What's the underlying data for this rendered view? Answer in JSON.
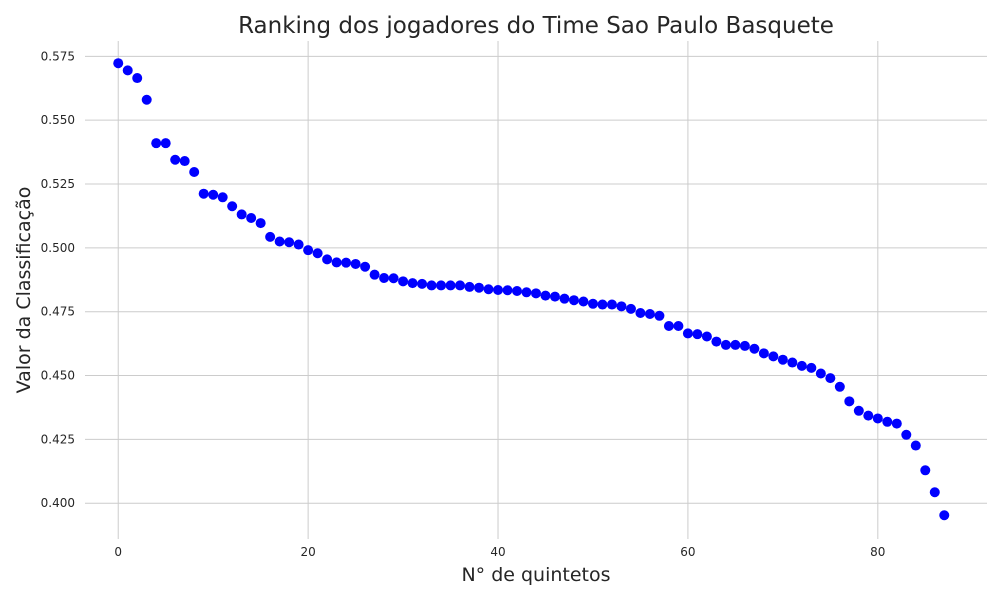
{
  "chart_data": {
    "type": "scatter",
    "title": "Ranking dos jogadores do Time Sao Paulo Basquete",
    "xlabel": "N° de quintetos",
    "ylabel": "Valor da Classificação",
    "xlim": [
      -3.5,
      91.5
    ],
    "ylim": [
      0.386,
      0.581
    ],
    "xticks": [
      0,
      20,
      40,
      60,
      80
    ],
    "xtick_labels": [
      "0",
      "20",
      "40",
      "60",
      "80"
    ],
    "yticks": [
      0.4,
      0.425,
      0.45,
      0.475,
      0.5,
      0.525,
      0.55,
      0.575
    ],
    "ytick_labels": [
      "0.400",
      "0.425",
      "0.450",
      "0.475",
      "0.500",
      "0.525",
      "0.550",
      "0.575"
    ],
    "grid": true,
    "legend": "none",
    "colors": {
      "points": "#0000ff",
      "grid": "#cccccc",
      "text": "#262626"
    },
    "series": [
      {
        "x": [
          0,
          1,
          2,
          3,
          4,
          5,
          6,
          7,
          8,
          9,
          10,
          11,
          12,
          13,
          14,
          15,
          16,
          17,
          18,
          19,
          20,
          21,
          22,
          23,
          24,
          25,
          26,
          27,
          28,
          29,
          30,
          31,
          32,
          33,
          34,
          35,
          36,
          37,
          38,
          39,
          40,
          41,
          42,
          43,
          44,
          45,
          46,
          47,
          48,
          49,
          50,
          51,
          52,
          53,
          54,
          55,
          56,
          57,
          58,
          59,
          60,
          61,
          62,
          63,
          64,
          65,
          66,
          67,
          68,
          69,
          70,
          71,
          72,
          73,
          74,
          75,
          76,
          77,
          78,
          79,
          80,
          81,
          82,
          83,
          84,
          85,
          86,
          87
        ],
        "y": [
          0.5723,
          0.5695,
          0.5665,
          0.558,
          0.541,
          0.541,
          0.5345,
          0.534,
          0.5297,
          0.5212,
          0.5208,
          0.5198,
          0.5163,
          0.5131,
          0.5117,
          0.5097,
          0.5043,
          0.5025,
          0.5022,
          0.5013,
          0.4991,
          0.4979,
          0.4955,
          0.4943,
          0.4942,
          0.4937,
          0.4926,
          0.4895,
          0.4882,
          0.4881,
          0.4869,
          0.4862,
          0.4859,
          0.4853,
          0.4853,
          0.4853,
          0.4853,
          0.4847,
          0.4844,
          0.4838,
          0.4835,
          0.4834,
          0.4831,
          0.4826,
          0.4822,
          0.4813,
          0.4809,
          0.4801,
          0.4795,
          0.479,
          0.4781,
          0.4778,
          0.4778,
          0.4771,
          0.4761,
          0.4745,
          0.4741,
          0.4734,
          0.4694,
          0.4694,
          0.4665,
          0.4662,
          0.4653,
          0.4633,
          0.462,
          0.462,
          0.4616,
          0.4605,
          0.4587,
          0.4575,
          0.4562,
          0.4551,
          0.4538,
          0.453,
          0.4508,
          0.449,
          0.4456,
          0.4399,
          0.4362,
          0.4343,
          0.4332,
          0.4319,
          0.4312,
          0.4268,
          0.4226,
          0.4129,
          0.4043,
          0.3953
        ]
      }
    ]
  }
}
